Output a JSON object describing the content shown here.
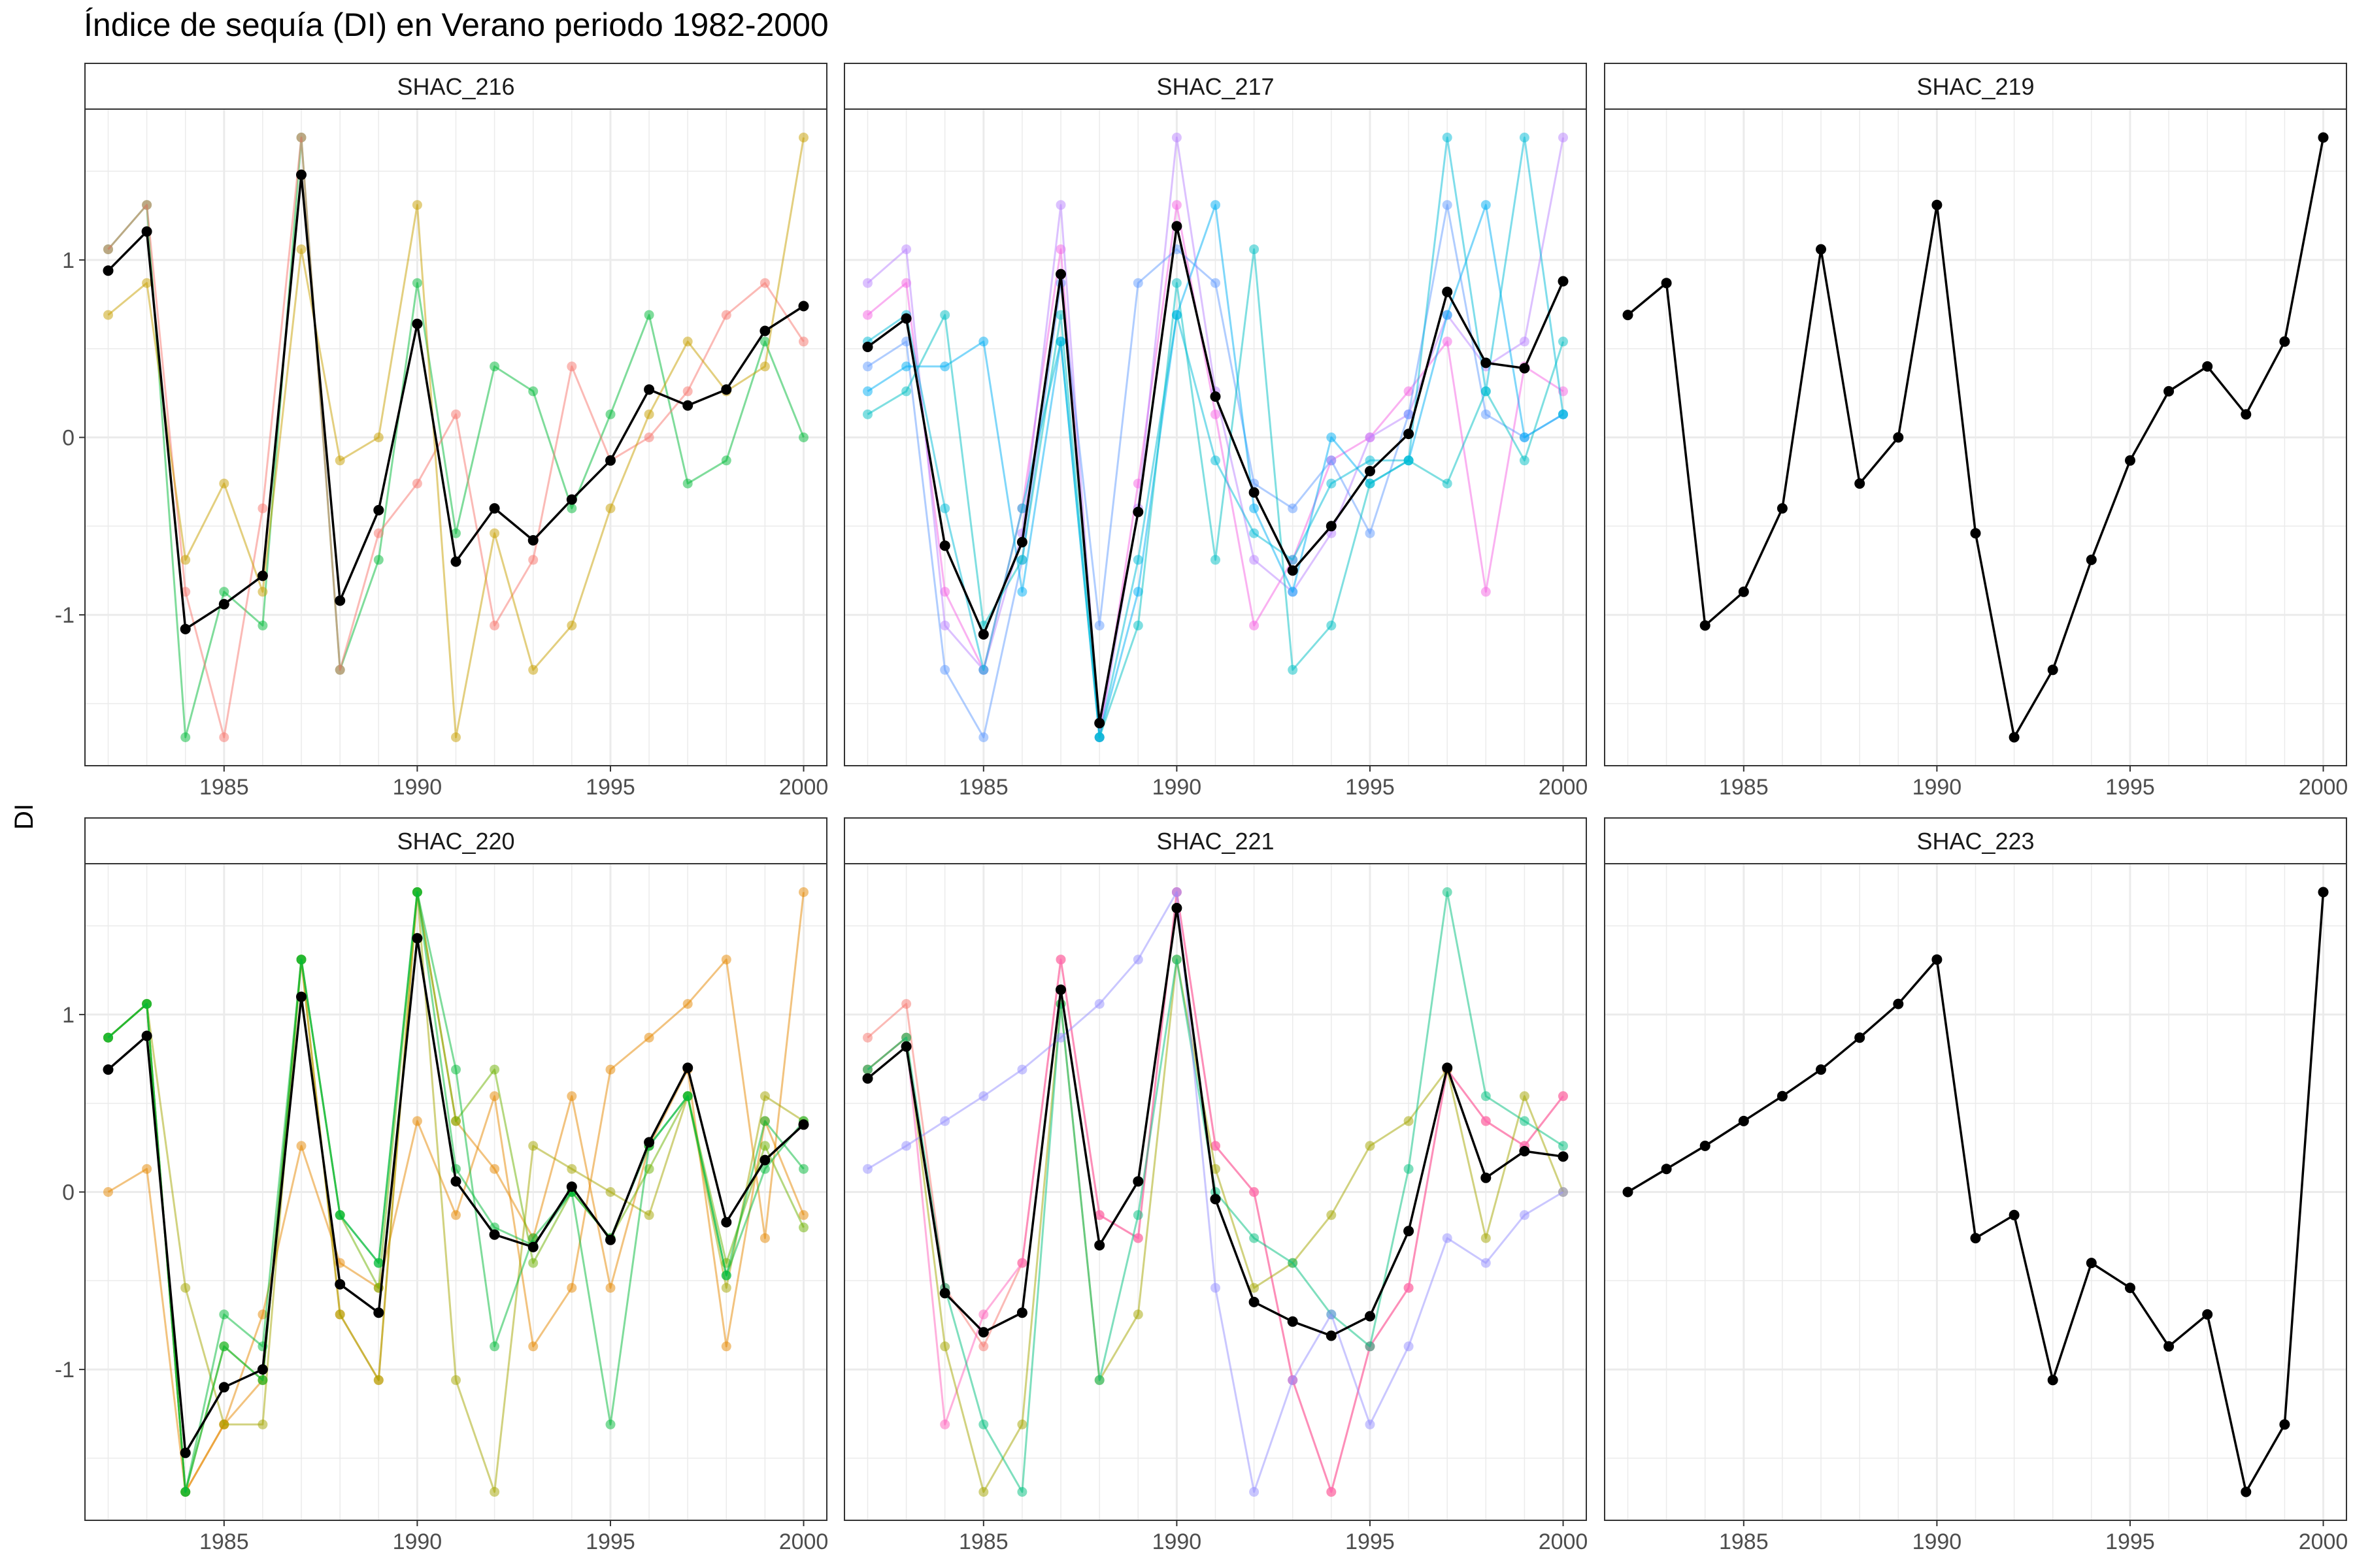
{
  "title": "Índice de sequía (DI) en Verano periodo 1982-2000",
  "ylabel": "DI",
  "x_tick_labels": [
    "1985",
    "1990",
    "1995",
    "2000"
  ],
  "y_tick_labels": [
    "-1",
    "0",
    "1"
  ],
  "colors": {
    "mean": "#000000",
    "panel_border": "#333333",
    "strip_fill": "#ffffff",
    "grid": "#ebebeb"
  },
  "chart_data": [
    {
      "type": "line",
      "panel": "SHAC_216",
      "x": [
        1982,
        1983,
        1984,
        1985,
        1986,
        1987,
        1988,
        1989,
        1990,
        1991,
        1992,
        1993,
        1994,
        1995,
        1996,
        1997,
        1998,
        1999,
        2000
      ],
      "xlim": [
        1981.4,
        2000.6
      ],
      "ylim": [
        -1.85,
        1.85
      ],
      "series": [
        {
          "color": "#00BA38",
          "values": [
            1.06,
            1.31,
            -1.69,
            -0.87,
            -1.06,
            1.69,
            -1.31,
            -0.69,
            0.87,
            -0.54,
            0.4,
            0.26,
            -0.4,
            0.13,
            0.69,
            -0.26,
            -0.13,
            0.54,
            0.0
          ]
        },
        {
          "color": "#F8766D",
          "values": [
            1.06,
            1.31,
            -0.87,
            -1.69,
            -0.4,
            1.69,
            -1.31,
            -0.54,
            -0.26,
            0.13,
            -1.06,
            -0.69,
            0.4,
            -0.13,
            0.0,
            0.26,
            0.69,
            0.87,
            0.54
          ]
        },
        {
          "color": "#C8A000",
          "values": [
            0.69,
            0.87,
            -0.69,
            -0.26,
            -0.87,
            1.06,
            -0.13,
            0.0,
            1.31,
            -1.69,
            -0.54,
            -1.31,
            -1.06,
            -0.4,
            0.13,
            0.54,
            0.26,
            0.4,
            1.69
          ]
        },
        {
          "color": "#000000",
          "name": "mean",
          "values": [
            0.94,
            1.16,
            -1.08,
            -0.94,
            -0.78,
            1.48,
            -0.92,
            -0.41,
            0.64,
            -0.7,
            -0.4,
            -0.58,
            -0.35,
            -0.13,
            0.27,
            0.18,
            0.27,
            0.6,
            0.74
          ]
        }
      ]
    },
    {
      "type": "line",
      "panel": "SHAC_217",
      "x": [
        1982,
        1983,
        1984,
        1985,
        1986,
        1987,
        1988,
        1989,
        1990,
        1991,
        1992,
        1993,
        1994,
        1995,
        1996,
        1997,
        1998,
        1999,
        2000
      ],
      "xlim": [
        1981.4,
        2000.6
      ],
      "ylim": [
        -1.85,
        1.85
      ],
      "series": [
        {
          "color": "#F564E3",
          "values": [
            0.69,
            0.87,
            -0.87,
            -1.31,
            -0.4,
            1.06,
            -1.69,
            -0.26,
            1.31,
            0.13,
            -1.06,
            -0.69,
            -0.13,
            0.0,
            0.26,
            0.54,
            -0.87,
            0.4,
            0.26
          ]
        },
        {
          "color": "#B983FF",
          "values": [
            0.87,
            1.06,
            -1.06,
            -1.31,
            -0.54,
            1.31,
            -1.69,
            -0.4,
            1.69,
            0.26,
            -0.69,
            -0.87,
            -0.54,
            0.0,
            0.13,
            0.69,
            0.4,
            0.54,
            1.69
          ]
        },
        {
          "color": "#619CFF",
          "values": [
            0.4,
            0.54,
            -1.31,
            -1.69,
            -0.69,
            0.87,
            -1.06,
            0.87,
            1.06,
            0.87,
            -0.26,
            -0.4,
            -0.13,
            -0.54,
            0.13,
            1.31,
            0.13,
            0.0,
            0.13
          ]
        },
        {
          "color": "#00B0F6",
          "values": [
            0.26,
            0.4,
            0.4,
            0.54,
            -0.87,
            0.54,
            -1.69,
            -0.87,
            0.69,
            1.31,
            -0.4,
            -0.87,
            0.0,
            -0.26,
            -0.13,
            0.69,
            1.31,
            0.0,
            0.13
          ]
        },
        {
          "color": "#00BFC4",
          "values": [
            0.13,
            0.26,
            0.69,
            -1.06,
            -0.69,
            0.69,
            -1.69,
            -1.06,
            0.87,
            -0.69,
            1.06,
            -1.31,
            -1.06,
            -0.26,
            -0.13,
            -0.26,
            0.26,
            -0.13,
            0.54
          ]
        },
        {
          "color": "#00BCD8",
          "values": [
            0.54,
            0.69,
            -0.4,
            -1.31,
            -0.4,
            0.54,
            -1.69,
            -0.69,
            0.69,
            -0.13,
            -0.54,
            -0.69,
            -0.26,
            -0.13,
            -0.13,
            1.69,
            0.26,
            1.69,
            0.13
          ]
        },
        {
          "color": "#000000",
          "name": "mean",
          "values": [
            0.51,
            0.67,
            -0.61,
            -1.11,
            -0.59,
            0.92,
            -1.61,
            -0.42,
            1.19,
            0.23,
            -0.31,
            -0.75,
            -0.5,
            -0.19,
            0.02,
            0.82,
            0.42,
            0.39,
            0.88
          ]
        }
      ]
    },
    {
      "type": "line",
      "panel": "SHAC_219",
      "x": [
        1982,
        1983,
        1984,
        1985,
        1986,
        1987,
        1988,
        1989,
        1990,
        1991,
        1992,
        1993,
        1994,
        1995,
        1996,
        1997,
        1998,
        1999,
        2000
      ],
      "xlim": [
        1981.4,
        2000.6
      ],
      "ylim": [
        -1.85,
        1.85
      ],
      "series": [
        {
          "color": "#000000",
          "name": "mean",
          "values": [
            0.69,
            0.87,
            -1.06,
            -0.87,
            -0.4,
            1.06,
            -0.26,
            0.0,
            1.31,
            -0.54,
            -1.69,
            -1.31,
            -0.69,
            -0.13,
            0.26,
            0.4,
            0.13,
            0.54,
            1.69
          ]
        }
      ]
    },
    {
      "type": "line",
      "panel": "SHAC_220",
      "x": [
        1982,
        1983,
        1984,
        1985,
        1986,
        1987,
        1988,
        1989,
        1990,
        1991,
        1992,
        1993,
        1994,
        1995,
        1996,
        1997,
        1998,
        1999,
        2000
      ],
      "xlim": [
        1981.4,
        2000.6
      ],
      "ylim": [
        -1.85,
        1.85
      ],
      "series": [
        {
          "color": "#E58700",
          "values": [
            0.0,
            0.13,
            -1.69,
            -1.31,
            -0.69,
            0.26,
            -0.4,
            -0.54,
            0.4,
            -0.13,
            0.54,
            -0.87,
            -0.54,
            0.69,
            0.87,
            1.06,
            1.31,
            -0.26,
            1.69
          ]
        },
        {
          "color": "#E58700",
          "values": [
            0.87,
            1.06,
            -1.69,
            -1.31,
            -1.06,
            1.31,
            -0.69,
            -1.06,
            1.69,
            0.4,
            0.13,
            -0.26,
            0.54,
            -0.54,
            0.26,
            0.69,
            -0.87,
            0.4,
            -0.13
          ]
        },
        {
          "color": "#A3A500",
          "values": [
            0.87,
            1.06,
            -0.54,
            -1.31,
            -1.31,
            1.31,
            -0.69,
            -1.06,
            1.69,
            -1.06,
            -1.69,
            0.26,
            0.13,
            0.0,
            -0.13,
            0.54,
            -0.54,
            0.54,
            0.4
          ]
        },
        {
          "color": "#6BB100",
          "values": [
            0.87,
            1.06,
            -1.69,
            -0.87,
            -1.06,
            1.31,
            -0.13,
            -0.54,
            1.69,
            0.4,
            0.69,
            -0.4,
            0.0,
            -0.26,
            0.13,
            0.54,
            -0.4,
            0.26,
            -0.2
          ]
        },
        {
          "color": "#00BA38",
          "values": [
            0.87,
            1.06,
            -1.69,
            -0.69,
            -0.87,
            1.31,
            -0.13,
            -0.4,
            1.69,
            0.69,
            -0.87,
            -0.26,
            0.0,
            -1.31,
            0.26,
            0.54,
            -0.47,
            0.4,
            0.13
          ]
        },
        {
          "color": "#00BA38",
          "values": [
            0.87,
            1.06,
            -1.69,
            -0.87,
            -1.06,
            1.31,
            -0.13,
            -0.4,
            1.69,
            0.13,
            -0.2,
            -0.3,
            0.0,
            -0.26,
            0.26,
            0.54,
            -0.47,
            0.13,
            0.4
          ]
        },
        {
          "color": "#000000",
          "name": "mean",
          "values": [
            0.69,
            0.88,
            -1.47,
            -1.1,
            -1.0,
            1.1,
            -0.52,
            -0.68,
            1.43,
            0.06,
            -0.24,
            -0.31,
            0.03,
            -0.27,
            0.28,
            0.7,
            -0.17,
            0.18,
            0.38
          ]
        }
      ]
    },
    {
      "type": "line",
      "panel": "SHAC_221",
      "x": [
        1982,
        1983,
        1984,
        1985,
        1986,
        1987,
        1988,
        1989,
        1990,
        1991,
        1992,
        1993,
        1994,
        1995,
        1996,
        1997,
        1998,
        1999,
        2000
      ],
      "xlim": [
        1981.4,
        2000.6
      ],
      "ylim": [
        -1.85,
        1.85
      ],
      "series": [
        {
          "color": "#F8766D",
          "values": [
            0.87,
            1.06,
            -0.54,
            -0.87,
            -0.4,
            1.31,
            -0.13,
            -0.26,
            1.69,
            0.26,
            0.0,
            -1.06,
            -1.69,
            -0.87,
            -0.54,
            0.69,
            0.4,
            0.26,
            0.54
          ]
        },
        {
          "color": "#FF62BC",
          "values": [
            0.69,
            0.87,
            -1.31,
            -0.69,
            -0.4,
            1.31,
            -0.13,
            -0.26,
            1.69,
            0.26,
            0.0,
            -1.06,
            -1.69,
            -0.87,
            -0.54,
            0.69,
            0.4,
            0.26,
            0.54
          ]
        },
        {
          "color": "#A3A500",
          "values": [
            0.69,
            0.87,
            -0.87,
            -1.69,
            -1.31,
            1.06,
            -1.06,
            -0.69,
            1.31,
            0.13,
            -0.54,
            -0.4,
            -0.13,
            0.26,
            0.4,
            0.69,
            -0.26,
            0.54,
            0.0
          ]
        },
        {
          "color": "#00BF7D",
          "values": [
            0.69,
            0.87,
            -0.54,
            -1.31,
            -1.69,
            1.06,
            -1.06,
            -0.13,
            1.31,
            0.0,
            -0.26,
            -0.4,
            -0.69,
            -0.87,
            0.13,
            1.69,
            0.54,
            0.4,
            0.26
          ]
        },
        {
          "color": "#9590FF",
          "values": [
            0.13,
            0.26,
            0.4,
            0.54,
            0.69,
            0.87,
            1.06,
            1.31,
            1.69,
            -0.54,
            -1.69,
            -1.06,
            -0.69,
            -1.31,
            -0.87,
            -0.26,
            -0.4,
            -0.13,
            0.0
          ]
        },
        {
          "color": "#000000",
          "name": "mean",
          "values": [
            0.64,
            0.82,
            -0.57,
            -0.79,
            -0.68,
            1.14,
            -0.3,
            0.06,
            1.6,
            -0.04,
            -0.62,
            -0.73,
            -0.81,
            -0.7,
            -0.22,
            0.7,
            0.08,
            0.23,
            0.2
          ]
        }
      ]
    },
    {
      "type": "line",
      "panel": "SHAC_223",
      "x": [
        1982,
        1983,
        1984,
        1985,
        1986,
        1987,
        1988,
        1989,
        1990,
        1991,
        1992,
        1993,
        1994,
        1995,
        1996,
        1997,
        1998,
        1999,
        2000
      ],
      "xlim": [
        1981.4,
        2000.6
      ],
      "ylim": [
        -1.85,
        1.85
      ],
      "series": [
        {
          "color": "#000000",
          "name": "mean",
          "values": [
            0.0,
            0.13,
            0.26,
            0.4,
            0.54,
            0.69,
            0.87,
            1.06,
            1.31,
            -0.26,
            -0.13,
            -1.06,
            -0.4,
            -0.54,
            -0.87,
            -0.69,
            -1.69,
            -1.31,
            1.69
          ]
        }
      ]
    }
  ]
}
